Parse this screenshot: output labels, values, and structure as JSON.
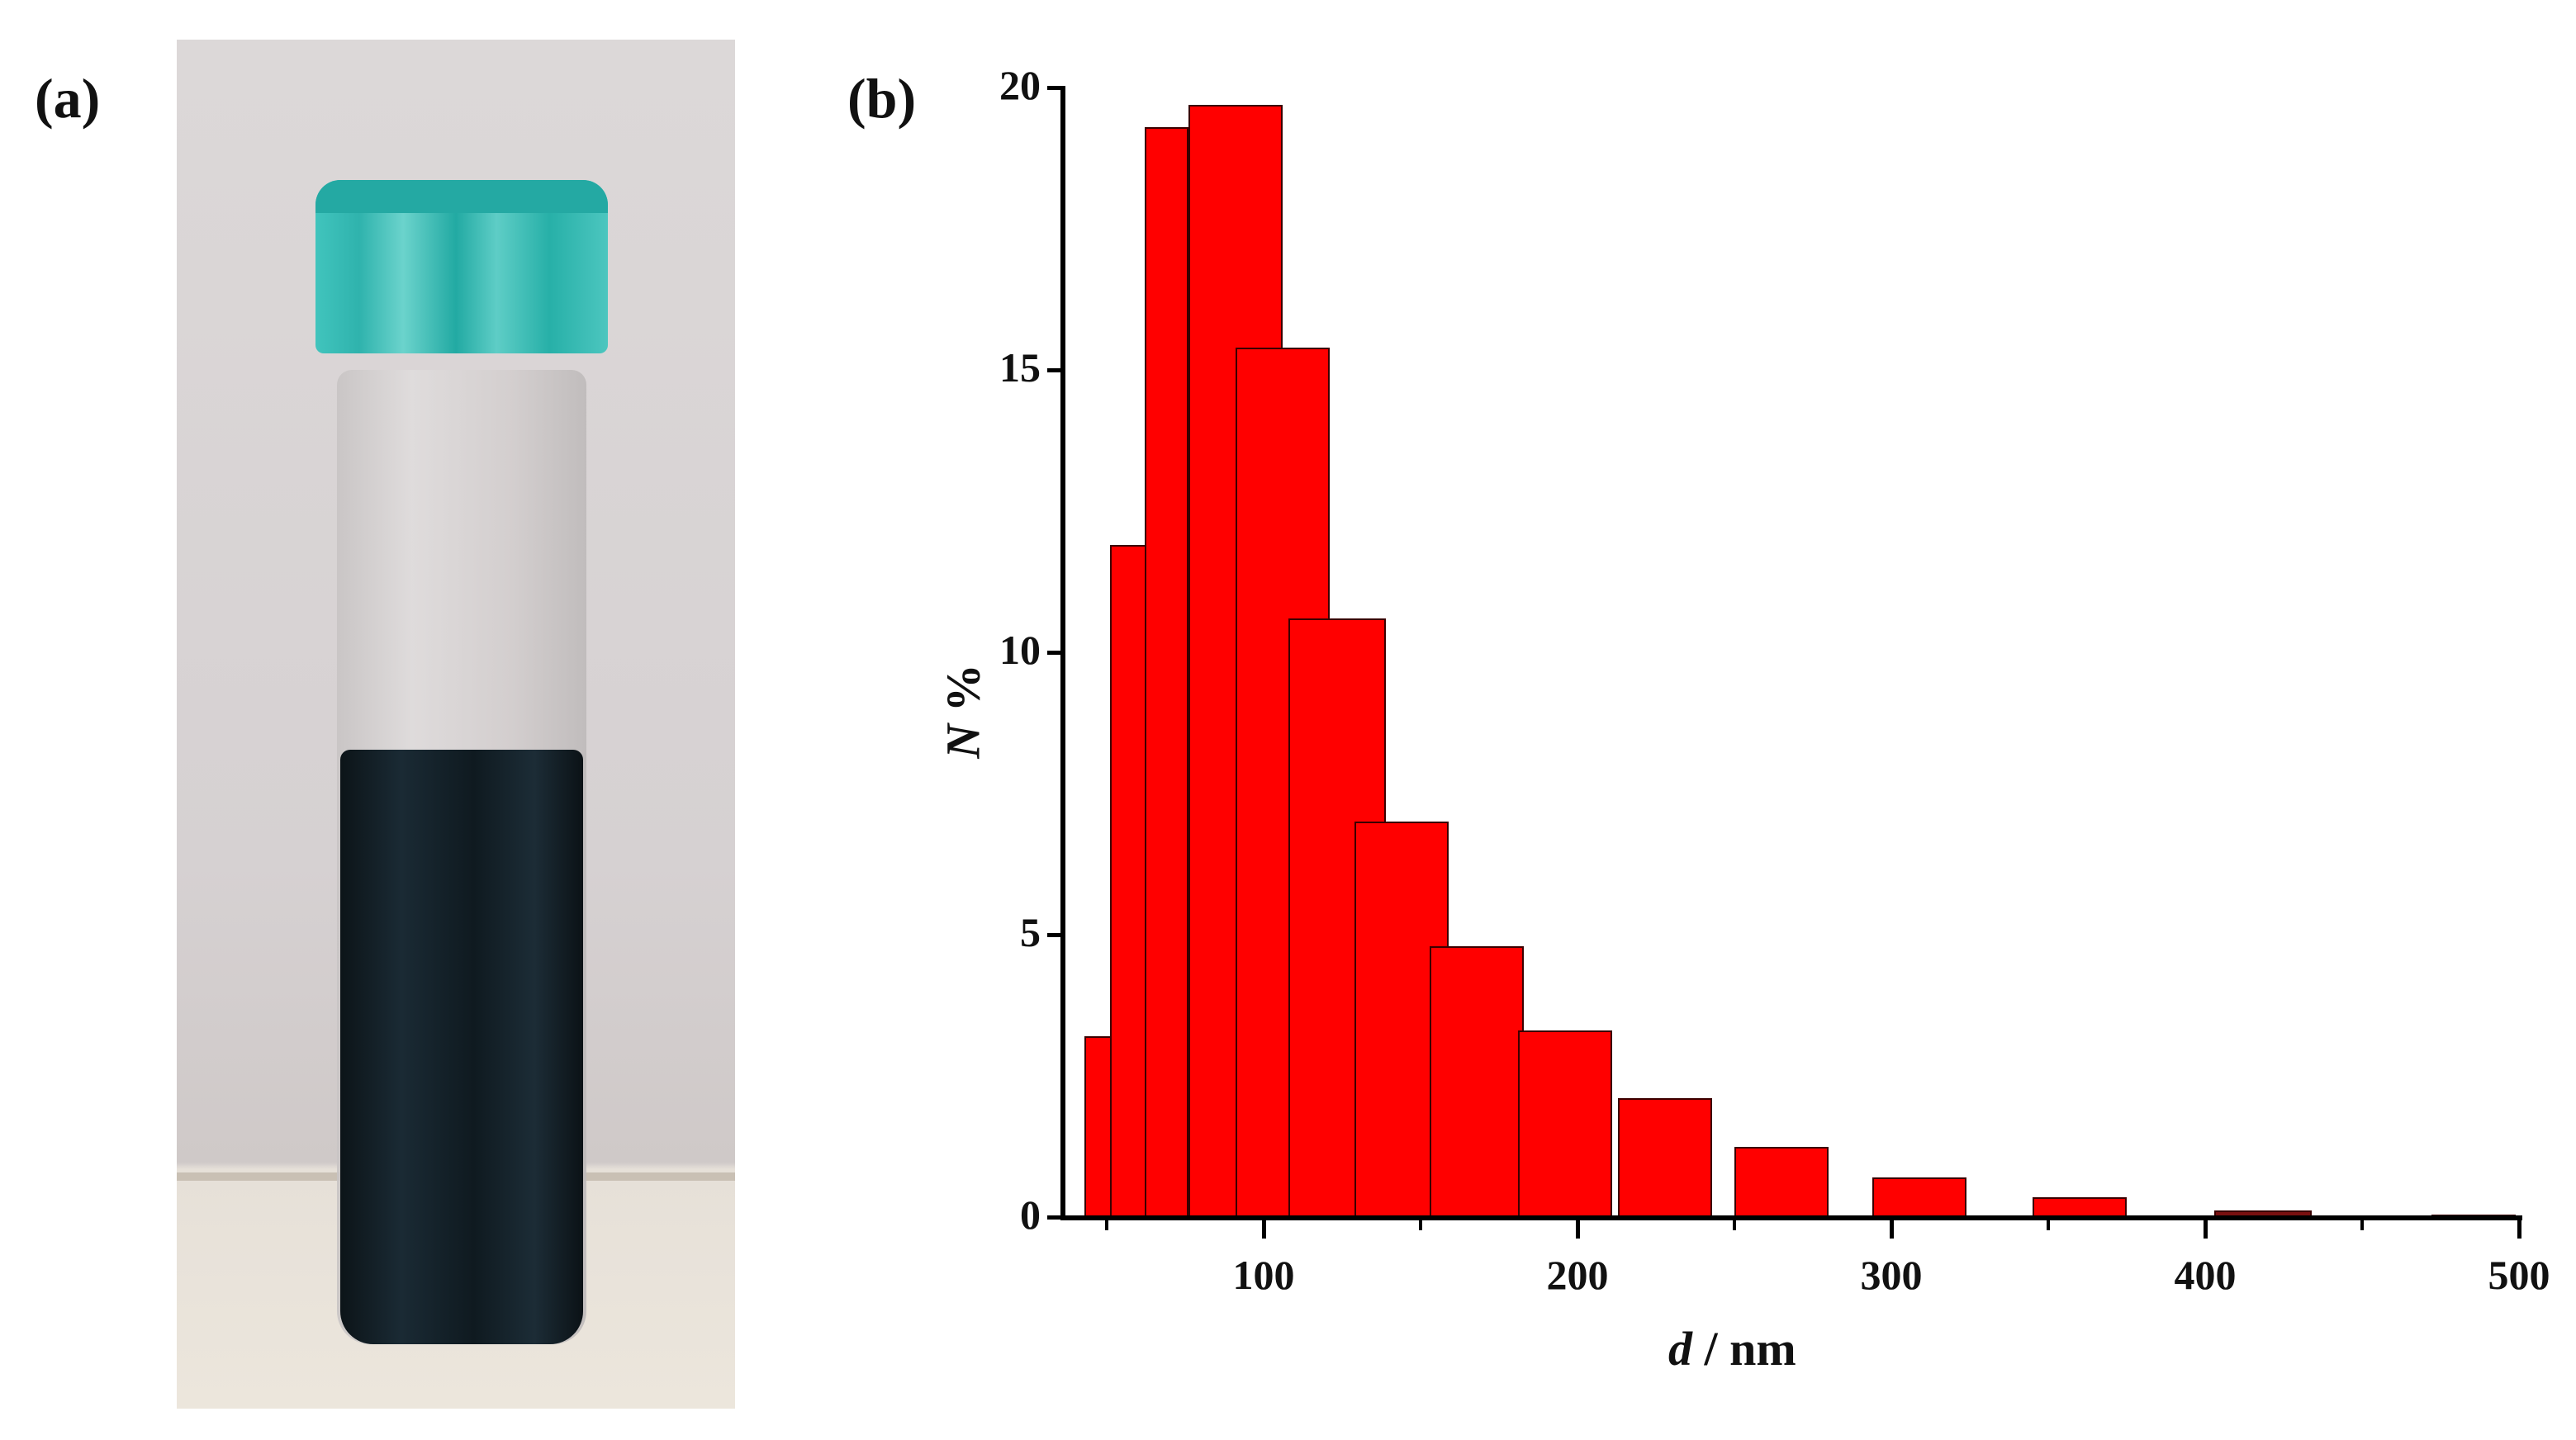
{
  "panels": {
    "a": {
      "label": "(a)",
      "description": "photo of glass vial with teal cap containing dark dispersion"
    },
    "b": {
      "label": "(b)"
    }
  },
  "colors": {
    "bar_fill": "#ff0000",
    "bar_edge": "#3a0000",
    "cap": "#2fb3ad",
    "liquid": "#0f1a20"
  },
  "chart_data": {
    "type": "bar",
    "title": "",
    "xlabel_italic": "d",
    "xlabel_rest": " / nm",
    "xlabel": "d / nm",
    "ylabel_italic": "N",
    "ylabel_rest": " %",
    "ylabel": "N %",
    "xlim": [
      40,
      500
    ],
    "ylim": [
      0,
      20
    ],
    "xticks": [
      100,
      200,
      300,
      400,
      500
    ],
    "xminor": [
      50,
      150,
      250,
      350,
      450
    ],
    "yticks": [
      0,
      5,
      10,
      15,
      20
    ],
    "grid": false,
    "legend": null,
    "bins": [
      {
        "x0": 43,
        "x1": 52,
        "value": 3.2
      },
      {
        "x0": 51,
        "x1": 63,
        "value": 11.9
      },
      {
        "x0": 62,
        "x1": 76,
        "value": 19.3
      },
      {
        "x0": 76,
        "x1": 106,
        "value": 19.7
      },
      {
        "x0": 91,
        "x1": 121,
        "value": 15.4
      },
      {
        "x0": 108,
        "x1": 139,
        "value": 10.6
      },
      {
        "x0": 129,
        "x1": 159,
        "value": 7.0
      },
      {
        "x0": 153,
        "x1": 183,
        "value": 4.8
      },
      {
        "x0": 181,
        "x1": 211,
        "value": 3.3
      },
      {
        "x0": 213,
        "x1": 243,
        "value": 2.1
      },
      {
        "x0": 250,
        "x1": 280,
        "value": 1.25
      },
      {
        "x0": 294,
        "x1": 324,
        "value": 0.7
      },
      {
        "x0": 345,
        "x1": 375,
        "value": 0.35
      },
      {
        "x0": 403,
        "x1": 434,
        "value": 0.12
      },
      {
        "x0": 472,
        "x1": 499,
        "value": 0.04
      }
    ],
    "categories": [
      "43-52",
      "51-63",
      "62-76",
      "76-106",
      "91-121",
      "108-139",
      "129-159",
      "153-183",
      "181-211",
      "213-243",
      "250-280",
      "294-324",
      "345-375",
      "403-434",
      "472-499"
    ],
    "values": [
      3.2,
      11.9,
      19.3,
      19.7,
      15.4,
      10.6,
      7.0,
      4.8,
      3.3,
      2.1,
      1.25,
      0.7,
      0.35,
      0.12,
      0.04
    ]
  }
}
